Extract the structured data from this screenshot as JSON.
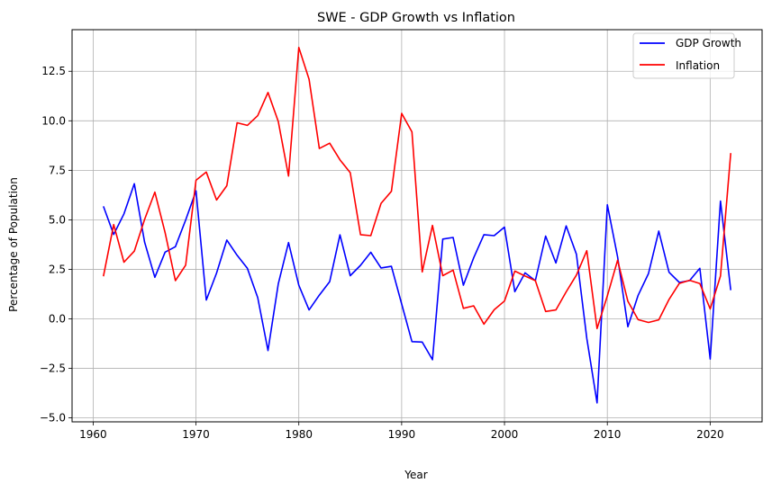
{
  "chart_data": {
    "type": "line",
    "title": "SWE - GDP Growth vs Inflation",
    "xlabel": "Year",
    "ylabel": "Percentage of Population",
    "xlim": [
      1957.95,
      2025.05
    ],
    "ylim": [
      -5.2,
      14.6
    ],
    "xticks": [
      1960,
      1970,
      1980,
      1990,
      2000,
      2010,
      2020
    ],
    "xtick_labels": [
      "1960",
      "1970",
      "1980",
      "1990",
      "2000",
      "2010",
      "2020"
    ],
    "yticks": [
      -5.0,
      -2.5,
      0.0,
      2.5,
      5.0,
      7.5,
      10.0,
      12.5
    ],
    "ytick_labels": [
      "−5.0",
      "−2.5",
      "0.0",
      "2.5",
      "5.0",
      "7.5",
      "10.0",
      "12.5"
    ],
    "grid": true,
    "legend": "top-right",
    "x": [
      1961,
      1962,
      1963,
      1964,
      1965,
      1966,
      1967,
      1968,
      1969,
      1970,
      1971,
      1972,
      1973,
      1974,
      1975,
      1976,
      1977,
      1978,
      1979,
      1980,
      1981,
      1982,
      1983,
      1984,
      1985,
      1986,
      1987,
      1988,
      1989,
      1990,
      1991,
      1992,
      1993,
      1994,
      1995,
      1996,
      1997,
      1998,
      1999,
      2000,
      2001,
      2002,
      2003,
      2004,
      2005,
      2006,
      2007,
      2008,
      2009,
      2010,
      2011,
      2012,
      2013,
      2014,
      2015,
      2016,
      2017,
      2018,
      2019,
      2020,
      2021,
      2022
    ],
    "series": [
      {
        "name": "GDP Growth",
        "color": "#0000ff",
        "values": [
          5.68,
          4.26,
          5.3,
          6.82,
          3.88,
          2.1,
          3.37,
          3.64,
          4.99,
          6.46,
          0.95,
          2.31,
          3.98,
          3.21,
          2.55,
          1.07,
          -1.6,
          1.76,
          3.85,
          1.7,
          0.45,
          1.2,
          1.88,
          4.24,
          2.18,
          2.7,
          3.36,
          2.57,
          2.65,
          0.75,
          -1.15,
          -1.17,
          -2.06,
          4.03,
          4.11,
          1.7,
          3.08,
          4.25,
          4.2,
          4.63,
          1.37,
          2.32,
          1.93,
          4.18,
          2.82,
          4.69,
          3.26,
          -0.98,
          -4.24,
          5.76,
          3.13,
          -0.4,
          1.19,
          2.29,
          4.43,
          2.35,
          1.84,
          1.93,
          2.55,
          -2.03,
          5.95,
          1.45
        ]
      },
      {
        "name": "Inflation",
        "color": "#ff0000",
        "values": [
          2.15,
          4.76,
          2.86,
          3.42,
          5.02,
          6.4,
          4.35,
          1.93,
          2.71,
          7.0,
          7.41,
          6.0,
          6.72,
          9.9,
          9.77,
          10.26,
          11.43,
          9.97,
          7.21,
          13.7,
          12.1,
          8.6,
          8.87,
          8.03,
          7.38,
          4.25,
          4.2,
          5.83,
          6.44,
          10.37,
          9.44,
          2.37,
          4.72,
          2.18,
          2.46,
          0.53,
          0.66,
          -0.27,
          0.46,
          0.9,
          2.41,
          2.16,
          1.93,
          0.37,
          0.45,
          1.36,
          2.21,
          3.44,
          -0.49,
          1.16,
          2.96,
          0.89,
          -0.04,
          -0.18,
          -0.05,
          0.98,
          1.79,
          1.95,
          1.78,
          0.5,
          2.16,
          8.37
        ]
      }
    ]
  }
}
